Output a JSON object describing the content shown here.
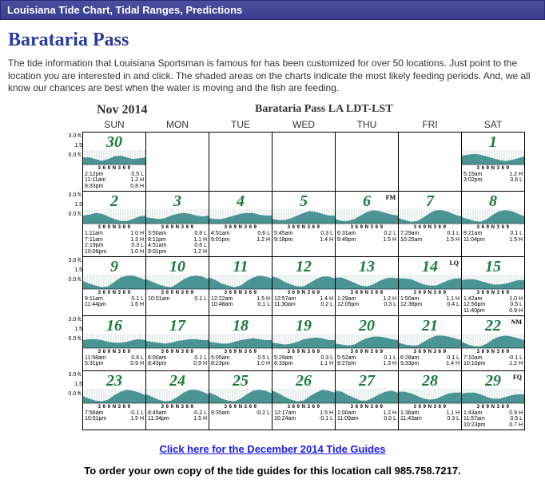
{
  "header": "Louisiana Tide Chart, Tidal Ranges, Predictions",
  "location": "Barataria Pass",
  "intro": "The tide information that Louisiana Sportsman is famous for has been customized for over 50 locations. Just point to the location you are interested in and click. The shaded areas on the charts indicate the most likely feeding periods. And, we all know our chances are best when the water is moving and the fish are feeding.",
  "month_year": "Nov 2014",
  "chart_title": "Barataria Pass    LA   LDT-LST",
  "weekdays": [
    "SUN",
    "MON",
    "TUE",
    "WED",
    "THU",
    "FRI",
    "SAT"
  ],
  "yaxis_labels": [
    "3.0 ft.",
    "1.5",
    "0.0 ft."
  ],
  "tick_label": "3 6 9 N 3 6 9",
  "tide_color": "#3a8a8a",
  "link_text": "Click here for the December 2014 Tide Guides",
  "order_text": "To order your own copy of the tide guides for this location call 985.758.7217.",
  "weeks": [
    [
      {
        "day": "30",
        "phase": "",
        "times": [
          [
            "2:12pm",
            "0.5 L"
          ],
          [
            "11:11am",
            "1.2 H"
          ],
          [
            "8:33pm",
            "0.8 H"
          ]
        ],
        "curve": [
          8,
          8,
          6,
          4,
          6,
          9,
          10,
          8,
          6,
          7,
          8
        ]
      },
      null,
      null,
      null,
      null,
      null,
      {
        "day": "1",
        "phase": "",
        "times": [
          [
            "5:15am",
            "1.2 H"
          ],
          [
            "3:02pm",
            "0.6 L"
          ]
        ],
        "curve": [
          10,
          11,
          12,
          11,
          9,
          7,
          5,
          4,
          5,
          7,
          9
        ]
      }
    ],
    [
      {
        "day": "2",
        "phase": "",
        "times": [
          [
            "1:11am",
            "1.0 H"
          ],
          [
            "7:11am",
            "1.3 H"
          ],
          [
            "2:19pm",
            "0.3 L"
          ],
          [
            "10:06pm",
            "1.0 H"
          ]
        ],
        "curve": [
          9,
          10,
          12,
          11,
          8,
          5,
          3,
          3,
          5,
          8,
          9
        ]
      },
      {
        "day": "3",
        "phase": "",
        "times": [
          [
            "3:50am",
            "0.8 L"
          ],
          [
            "8:11pm",
            "1.1 H"
          ],
          [
            "4:51am",
            "0.6 L"
          ],
          [
            "9:01pm",
            "1.2 H"
          ]
        ],
        "curve": [
          7,
          6,
          5,
          6,
          9,
          11,
          12,
          11,
          9,
          8,
          9
        ]
      },
      {
        "day": "4",
        "phase": "",
        "times": [
          [
            "4:51am",
            "0.6 L"
          ],
          [
            "9:01pm",
            "1.2 H"
          ]
        ],
        "curve": [
          6,
          5,
          5,
          7,
          9,
          11,
          12,
          12,
          10,
          9,
          9
        ]
      },
      {
        "day": "5",
        "phase": "",
        "times": [
          [
            "5:45am",
            "0.3 L"
          ],
          [
            "9:18pm",
            "1.4 H"
          ]
        ],
        "curve": [
          5,
          4,
          4,
          6,
          9,
          12,
          14,
          13,
          11,
          9,
          9
        ]
      },
      {
        "day": "6",
        "phase": "FM",
        "times": [
          [
            "6:31am",
            "0.2 L"
          ],
          [
            "9:49pm",
            "1.5 H"
          ]
        ],
        "curve": [
          5,
          3,
          3,
          5,
          9,
          13,
          15,
          14,
          12,
          10,
          9
        ]
      },
      {
        "day": "7",
        "phase": "",
        "times": [
          [
            "7:29am",
            "0.1 L"
          ],
          [
            "10:25am",
            "1.5 H"
          ]
        ],
        "curve": [
          6,
          4,
          2,
          3,
          7,
          12,
          15,
          15,
          13,
          10,
          8
        ]
      },
      {
        "day": "8",
        "phase": "",
        "times": [
          [
            "8:21am",
            "0.1 L"
          ],
          [
            "11:04pm",
            "1.5 H"
          ]
        ],
        "curve": [
          7,
          5,
          3,
          2,
          5,
          10,
          14,
          15,
          14,
          11,
          8
        ]
      }
    ],
    [
      {
        "day": "9",
        "phase": "",
        "times": [
          [
            "9:11am",
            "0.1 L"
          ],
          [
            "11:44pm",
            "1.6 H"
          ]
        ],
        "curve": [
          9,
          6,
          4,
          2,
          3,
          8,
          13,
          15,
          15,
          13,
          10
        ]
      },
      {
        "day": "10",
        "phase": "",
        "times": [
          [
            "10:01am",
            "0.1 L"
          ]
        ],
        "curve": [
          11,
          8,
          5,
          3,
          2,
          6,
          11,
          14,
          15,
          14,
          11
        ]
      },
      {
        "day": "11",
        "phase": "",
        "times": [
          [
            "12:22am",
            "1.5 H"
          ],
          [
            "10:48am",
            "0.1 L"
          ]
        ],
        "curve": [
          13,
          10,
          6,
          4,
          2,
          4,
          9,
          13,
          15,
          14,
          12
        ]
      },
      {
        "day": "12",
        "phase": "",
        "times": [
          [
            "12:57am",
            "1.4 H"
          ],
          [
            "11:30am",
            "0.2 L"
          ]
        ],
        "curve": [
          14,
          12,
          8,
          5,
          3,
          3,
          7,
          11,
          14,
          14,
          12
        ]
      },
      {
        "day": "13",
        "phase": "",
        "times": [
          [
            "1:29am",
            "1.2 H"
          ],
          [
            "12:05pm",
            "0.3 L"
          ]
        ],
        "curve": [
          13,
          13,
          10,
          7,
          4,
          3,
          5,
          9,
          12,
          13,
          12
        ]
      },
      {
        "day": "14",
        "phase": "LQ",
        "times": [
          [
            "1:50am",
            "1.1 H"
          ],
          [
            "12:38pm",
            "0.4 L"
          ]
        ],
        "curve": [
          12,
          12,
          11,
          8,
          5,
          4,
          4,
          7,
          10,
          12,
          12
        ]
      },
      {
        "day": "15",
        "phase": "",
        "times": [
          [
            "1:42am",
            "1.0 H"
          ],
          [
            "12:56pm",
            "0.5 L"
          ],
          [
            "11:40pm",
            "0.9 H"
          ]
        ],
        "curve": [
          10,
          11,
          11,
          9,
          7,
          5,
          5,
          6,
          8,
          10,
          10
        ]
      }
    ],
    [
      {
        "day": "16",
        "phase": "",
        "times": [
          [
            "11:58am",
            "0.6 L"
          ],
          [
            "5:31pm",
            "0.9 H"
          ]
        ],
        "curve": [
          9,
          10,
          10,
          9,
          7,
          6,
          6,
          7,
          9,
          10,
          9
        ]
      },
      {
        "day": "17",
        "phase": "",
        "times": [
          [
            "6:00am",
            "0.1 L"
          ],
          [
            "8:43pm",
            "0.9 H"
          ]
        ],
        "curve": [
          8,
          7,
          6,
          5,
          6,
          8,
          9,
          10,
          10,
          9,
          9
        ]
      },
      {
        "day": "18",
        "phase": "",
        "times": [
          [
            "5:05am",
            "0.5 L"
          ],
          [
            "8:23pm",
            "1.0 H"
          ]
        ],
        "curve": [
          7,
          6,
          5,
          5,
          7,
          9,
          10,
          11,
          10,
          9,
          9
        ]
      },
      {
        "day": "19",
        "phase": "",
        "times": [
          [
            "5:29am",
            "0.3 L"
          ],
          [
            "8:33pm",
            "1.1 H"
          ]
        ],
        "curve": [
          6,
          5,
          4,
          5,
          7,
          10,
          11,
          12,
          11,
          9,
          9
        ]
      },
      {
        "day": "20",
        "phase": "",
        "times": [
          [
            "5:52am",
            "0.1 L"
          ],
          [
            "8:27pm",
            "1.3 H"
          ]
        ],
        "curve": [
          5,
          4,
          3,
          4,
          8,
          11,
          13,
          13,
          12,
          10,
          9
        ]
      },
      {
        "day": "21",
        "phase": "",
        "times": [
          [
            "6:28am",
            "0.1 L"
          ],
          [
            "9:33pm",
            "1.4 H"
          ]
        ],
        "curve": [
          6,
          4,
          3,
          3,
          7,
          11,
          14,
          14,
          13,
          11,
          9
        ]
      },
      {
        "day": "22",
        "phase": "NM",
        "times": [
          [
            "7:10am",
            "-0.1 L"
          ],
          [
            "10:10pm",
            "1.2 H"
          ]
        ],
        "curve": [
          7,
          4,
          2,
          2,
          5,
          10,
          13,
          14,
          13,
          11,
          9
        ]
      }
    ],
    [
      {
        "day": "23",
        "phase": "",
        "times": [
          [
            "7:56am",
            "-0.1 L"
          ],
          [
            "10:51pm",
            "1.5 H"
          ]
        ],
        "curve": [
          8,
          5,
          3,
          2,
          4,
          9,
          13,
          15,
          14,
          12,
          9
        ]
      },
      {
        "day": "24",
        "phase": "",
        "times": [
          [
            "8:45am",
            "-0.2 L"
          ],
          [
            "11:34pm",
            "1.5 H"
          ]
        ],
        "curve": [
          10,
          7,
          4,
          2,
          3,
          7,
          12,
          15,
          15,
          13,
          10
        ]
      },
      {
        "day": "25",
        "phase": "",
        "times": [
          [
            "9:35am",
            "-0.2 L"
          ]
        ],
        "curve": [
          12,
          9,
          5,
          3,
          2,
          5,
          10,
          14,
          15,
          14,
          11
        ]
      },
      {
        "day": "26",
        "phase": "",
        "times": [
          [
            "12:17am",
            "1.5 H"
          ],
          [
            "10:24am",
            "-0.1 L"
          ]
        ],
        "curve": [
          14,
          11,
          7,
          4,
          2,
          3,
          8,
          12,
          15,
          14,
          12
        ]
      },
      {
        "day": "27",
        "phase": "",
        "times": [
          [
            "1:00am",
            "1.2 H"
          ],
          [
            "11:09am",
            "0.0 L"
          ]
        ],
        "curve": [
          14,
          13,
          9,
          6,
          3,
          3,
          6,
          10,
          13,
          14,
          12
        ]
      },
      {
        "day": "28",
        "phase": "",
        "times": [
          [
            "1:36am",
            "1.1 H"
          ],
          [
            "11:43am",
            "0.3 L"
          ]
        ],
        "curve": [
          13,
          13,
          11,
          8,
          5,
          4,
          5,
          8,
          11,
          12,
          12
        ]
      },
      {
        "day": "29",
        "phase": "FQ",
        "times": [
          [
            "1:43am",
            "0.9 H"
          ],
          [
            "11:57am",
            "0.5 L"
          ],
          [
            "10:23pm",
            "0.7 H"
          ]
        ],
        "curve": [
          11,
          12,
          12,
          10,
          7,
          5,
          5,
          7,
          9,
          10,
          10
        ]
      }
    ]
  ]
}
